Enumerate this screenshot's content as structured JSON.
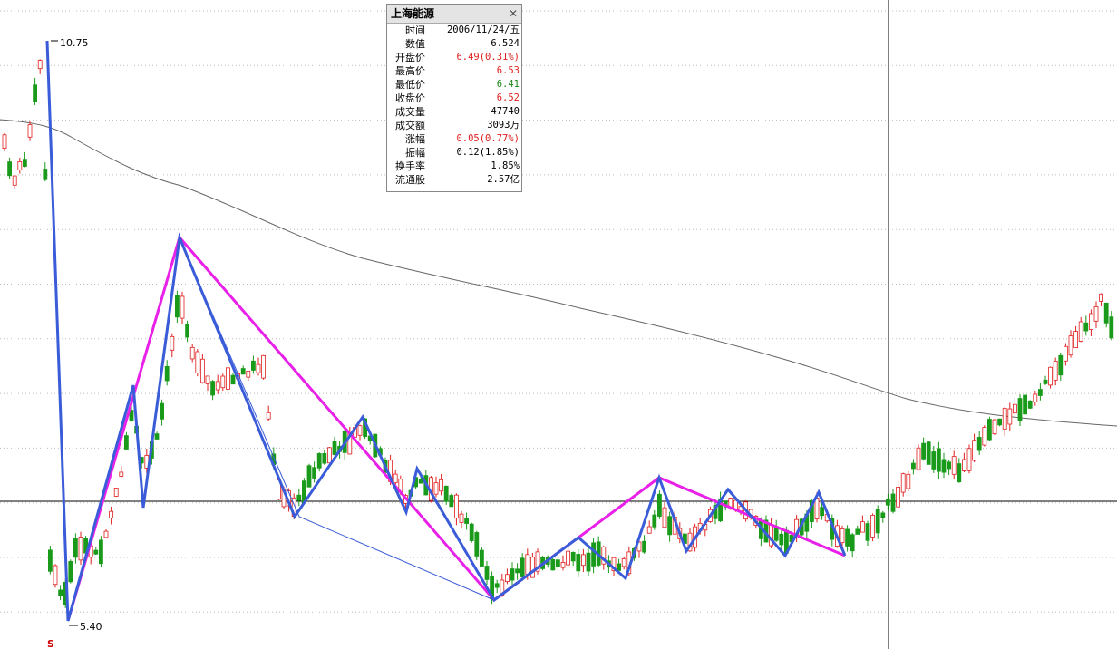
{
  "panel": {
    "title": "上海能源",
    "rows": [
      {
        "label": "时间",
        "value": "2006/11/24/五"
      },
      {
        "label": "数值",
        "value": "6.524"
      },
      {
        "label": "开盘价",
        "value": "6.49(0.31%)"
      },
      {
        "label": "最高价",
        "value": "6.53"
      },
      {
        "label": "最低价",
        "value": "6.41"
      },
      {
        "label": "收盘价",
        "value": "6.52"
      },
      {
        "label": "成交量",
        "value": "47740"
      },
      {
        "label": "成交额",
        "value": "3093万"
      },
      {
        "label": "涨幅",
        "value": "0.05(0.77%)"
      },
      {
        "label": "振幅",
        "value": "0.12(1.85%)"
      },
      {
        "label": "换手率",
        "value": "1.85%"
      },
      {
        "label": "流通股",
        "value": "2.57亿"
      }
    ]
  },
  "labels": {
    "high": "10.75",
    "low": "5.40",
    "marker": "S"
  }
}
